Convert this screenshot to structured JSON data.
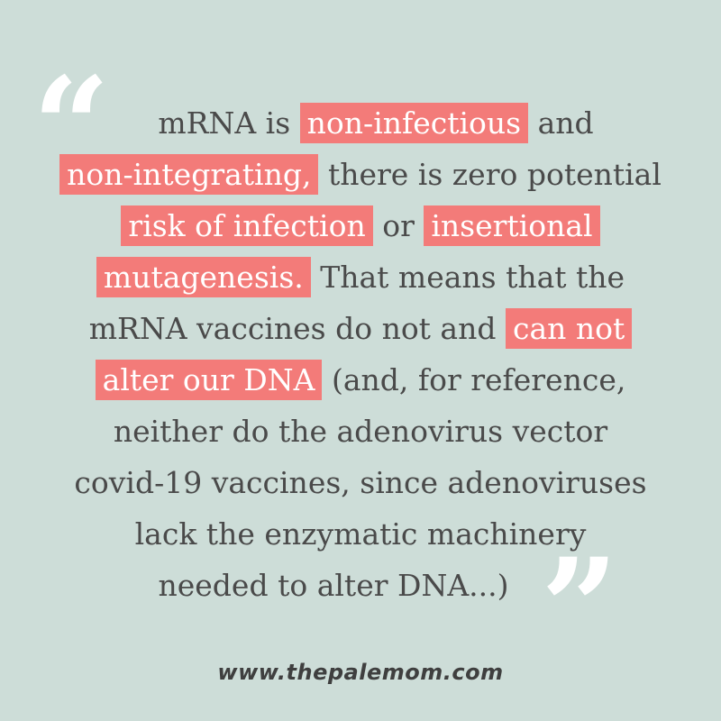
{
  "colors": {
    "background": "#cdddd8",
    "highlight": "#f37b79",
    "text": "#4a4a4a",
    "quote_marks": "#ffffff"
  },
  "quote": {
    "open_mark": "“",
    "close_mark": "”",
    "lines": [
      [
        {
          "text": "mRNA is ",
          "hl": false
        },
        {
          "text": "non-infectious",
          "hl": true
        },
        {
          "text": " and",
          "hl": false
        }
      ],
      [
        {
          "text": "non-integrating,",
          "hl": true
        },
        {
          "text": " there is zero potential",
          "hl": false
        }
      ],
      [
        {
          "text": "risk of infection",
          "hl": true
        },
        {
          "text": " or ",
          "hl": false
        },
        {
          "text": "insertional",
          "hl": true
        }
      ],
      [
        {
          "text": "mutagenesis.",
          "hl": true
        },
        {
          "text": " That means that the",
          "hl": false
        }
      ],
      [
        {
          "text": "mRNA vaccines do not and ",
          "hl": false
        },
        {
          "text": "can not",
          "hl": true
        }
      ],
      [
        {
          "text": "alter our DNA",
          "hl": true
        },
        {
          "text": " (and, for reference,",
          "hl": false
        }
      ],
      [
        {
          "text": "neither do the adenovirus vector",
          "hl": false
        }
      ],
      [
        {
          "text": "covid-19 vaccines, since adenoviruses",
          "hl": false
        }
      ],
      [
        {
          "text": "lack the enzymatic machinery",
          "hl": false
        }
      ],
      [
        {
          "text": "needed to alter DNA...)",
          "hl": false
        }
      ]
    ]
  },
  "footer": {
    "website": "www.thepalemom.com"
  }
}
